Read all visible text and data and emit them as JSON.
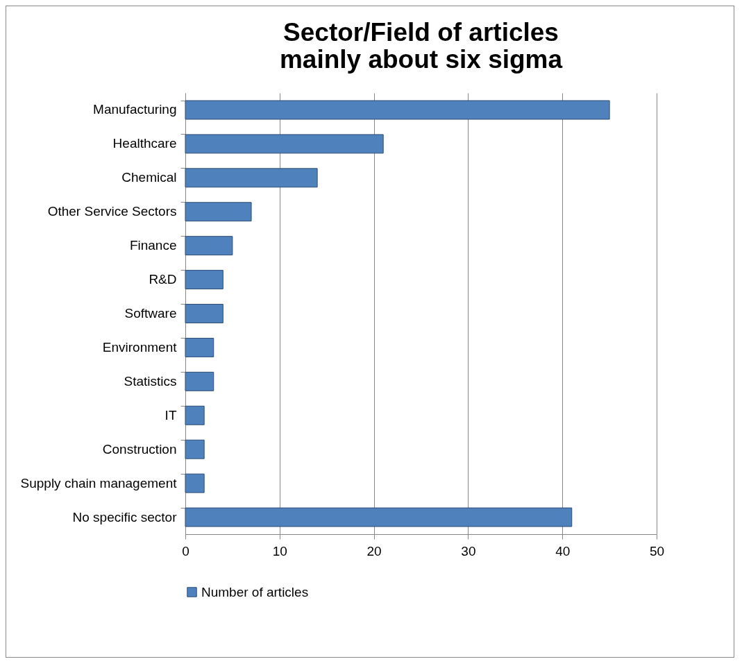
{
  "chart_data": {
    "type": "bar",
    "orientation": "horizontal",
    "title": "Sector/Field of articles mainly about six sigma",
    "categories": [
      "Manufacturing",
      "Healthcare",
      "Chemical",
      "Other Service Sectors",
      "Finance",
      "R&D",
      "Software",
      "Environment",
      "Statistics",
      "IT",
      "Construction",
      "Supply chain management",
      "No specific sector"
    ],
    "series": [
      {
        "name": "Number of articles",
        "color": "#4f81bd",
        "values": [
          45,
          21,
          14,
          7,
          5,
          4,
          4,
          3,
          3,
          2,
          2,
          2,
          41
        ]
      }
    ],
    "xlim": [
      0,
      50
    ],
    "xticks": [
      0,
      10,
      20,
      30,
      40,
      50
    ],
    "grid": "x",
    "legend": "bottom"
  }
}
